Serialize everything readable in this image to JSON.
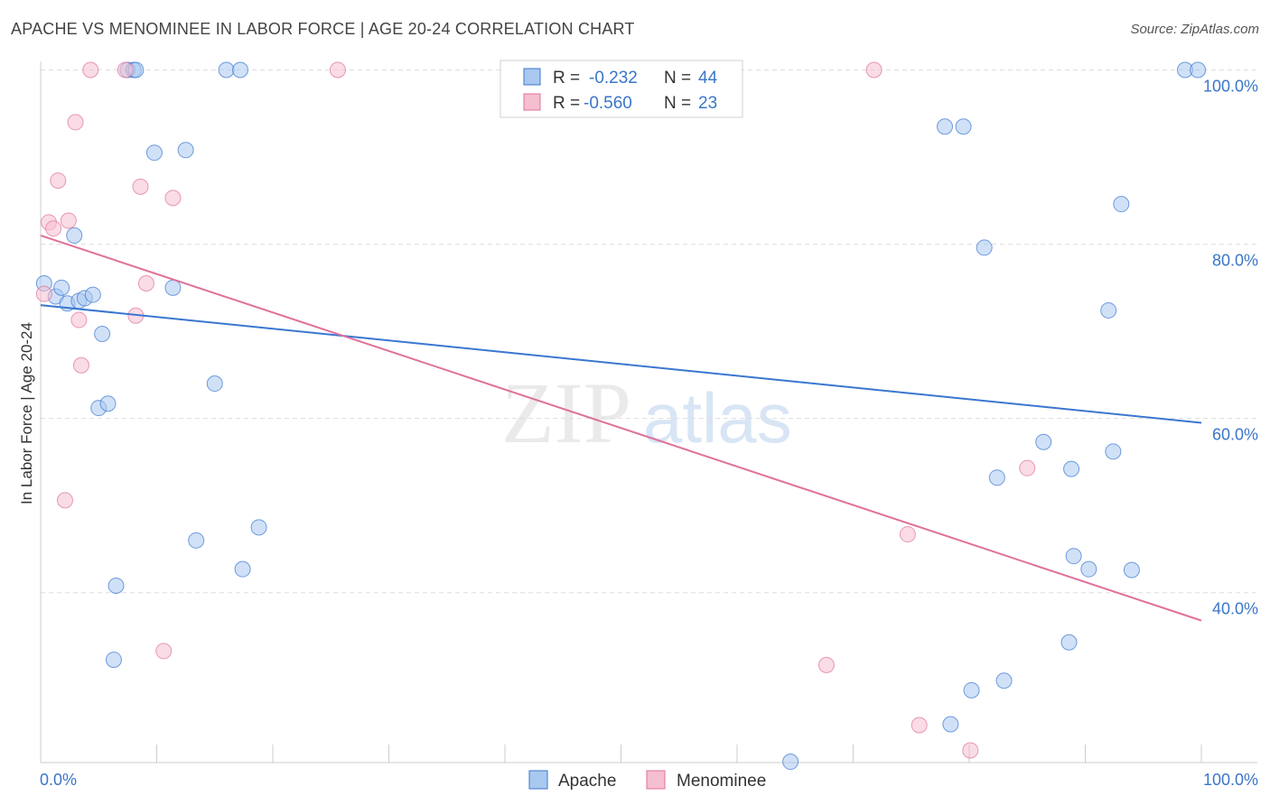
{
  "title": "APACHE VS MENOMINEE IN LABOR FORCE | AGE 20-24 CORRELATION CHART",
  "source": "Source: ZipAtlas.com",
  "watermark": {
    "zip": "ZIP",
    "atlas": "atlas"
  },
  "colors": {
    "apache": "#3a76d0",
    "apache_fill": "#a9c8f0",
    "menominee": "#e0709a",
    "menominee_fill": "#f5bfd0",
    "tick_text": "#3a76c8",
    "grid": "#dddddd"
  },
  "legend": {
    "rows": [
      {
        "r_label": "R =",
        "r_value": "-0.232",
        "n_label": "N =",
        "n_value": "44"
      },
      {
        "r_label": "R =",
        "r_value": "-0.560",
        "n_label": "N =",
        "n_value": "23"
      }
    ]
  },
  "bottom_legend": {
    "apache": "Apache",
    "menominee": "Menominee"
  },
  "chart_data": {
    "type": "scatter",
    "ylabel": "In Labor Force | Age 20-24",
    "xlim": [
      0,
      100
    ],
    "ylim": [
      20.5,
      101.5
    ],
    "x_tick_labels": [
      "0.0%",
      "100.0%"
    ],
    "y_ticks": [
      40,
      60,
      80,
      100
    ],
    "y_tick_labels": [
      "40.0%",
      "60.0%",
      "80.0%",
      "100.0%"
    ],
    "grid": true,
    "series": [
      {
        "name": "Apache",
        "points": [
          [
            0.3,
            75.5
          ],
          [
            1.3,
            74.0
          ],
          [
            1.8,
            75.0
          ],
          [
            2.3,
            73.2
          ],
          [
            2.9,
            81.0
          ],
          [
            3.3,
            73.5
          ],
          [
            3.8,
            73.8
          ],
          [
            4.5,
            74.2
          ],
          [
            5.3,
            69.7
          ],
          [
            5.0,
            61.2
          ],
          [
            5.8,
            61.7
          ],
          [
            6.5,
            40.8
          ],
          [
            6.3,
            32.3
          ],
          [
            7.5,
            100.0
          ],
          [
            8.0,
            100.0
          ],
          [
            8.2,
            100.0
          ],
          [
            9.8,
            90.5
          ],
          [
            11.4,
            75.0
          ],
          [
            12.5,
            90.8
          ],
          [
            13.4,
            46.0
          ],
          [
            15.0,
            64.0
          ],
          [
            16.0,
            100.0
          ],
          [
            17.2,
            100.0
          ],
          [
            17.4,
            42.7
          ],
          [
            18.8,
            47.5
          ],
          [
            64.6,
            20.6
          ],
          [
            77.9,
            93.5
          ],
          [
            79.5,
            93.5
          ],
          [
            80.2,
            28.8
          ],
          [
            78.4,
            24.9
          ],
          [
            81.3,
            79.6
          ],
          [
            82.4,
            53.2
          ],
          [
            83.0,
            29.9
          ],
          [
            86.4,
            57.3
          ],
          [
            88.6,
            34.3
          ],
          [
            88.8,
            54.2
          ],
          [
            89.0,
            44.2
          ],
          [
            90.3,
            42.7
          ],
          [
            92.0,
            72.4
          ],
          [
            92.4,
            56.2
          ],
          [
            93.1,
            84.6
          ],
          [
            94.0,
            42.6
          ],
          [
            98.6,
            100.0
          ],
          [
            99.7,
            100.0
          ]
        ]
      },
      {
        "name": "Menominee",
        "points": [
          [
            0.3,
            74.3
          ],
          [
            0.7,
            82.5
          ],
          [
            1.1,
            81.8
          ],
          [
            1.5,
            87.3
          ],
          [
            2.1,
            50.6
          ],
          [
            2.4,
            82.7
          ],
          [
            3.0,
            94.0
          ],
          [
            3.3,
            71.3
          ],
          [
            3.5,
            66.1
          ],
          [
            4.3,
            100.0
          ],
          [
            7.3,
            100.0
          ],
          [
            8.2,
            71.8
          ],
          [
            8.6,
            86.6
          ],
          [
            9.1,
            75.5
          ],
          [
            10.6,
            33.3
          ],
          [
            11.4,
            85.3
          ],
          [
            25.6,
            100.0
          ],
          [
            67.7,
            31.7
          ],
          [
            71.8,
            100.0
          ],
          [
            74.7,
            46.7
          ],
          [
            75.7,
            24.8
          ],
          [
            80.1,
            21.9
          ],
          [
            85.0,
            54.3
          ]
        ]
      }
    ],
    "trend_lines": [
      {
        "series": "Apache",
        "x": [
          0,
          100
        ],
        "y": [
          73.0,
          59.5
        ]
      },
      {
        "series": "Menominee",
        "x": [
          0,
          100
        ],
        "y": [
          81.0,
          36.8
        ]
      }
    ]
  }
}
